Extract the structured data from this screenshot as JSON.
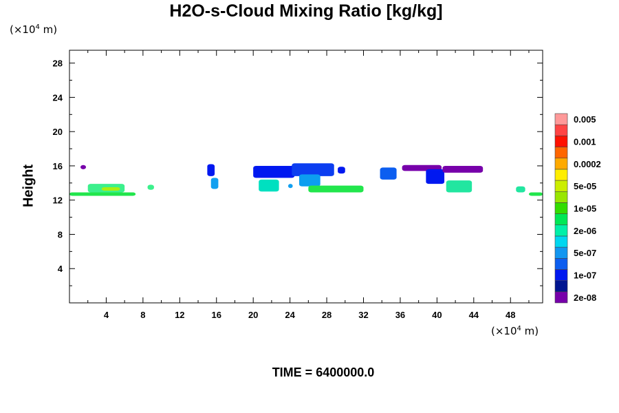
{
  "chart_data": {
    "type": "heatmap",
    "title": "H2O-s-Cloud Mixing Ratio [kg/kg]",
    "ylabel": "Height",
    "x_unit": {
      "prefix": "(×10",
      "exp": "4",
      "suffix": " m)"
    },
    "y_unit": {
      "prefix": "(×10",
      "exp": "4",
      "suffix": " m)"
    },
    "xlim": [
      0,
      51.5
    ],
    "ylim": [
      0,
      29.5
    ],
    "x_ticks": [
      4,
      8,
      12,
      16,
      20,
      24,
      28,
      32,
      36,
      40,
      44,
      48
    ],
    "y_ticks": [
      4,
      8,
      12,
      16,
      20,
      24,
      28
    ],
    "footer": "TIME = 6400000.0",
    "colorbar": {
      "colors": [
        "#7700aa",
        "#001590",
        "#0018f0",
        "#0c5ef0",
        "#1296f0",
        "#00d7f0",
        "#00f0a8",
        "#00e855",
        "#33dd00",
        "#99e600",
        "#ccee00",
        "#ffee00",
        "#ffaa00",
        "#ff6600",
        "#ff1100",
        "#ff4444",
        "#ff9999"
      ],
      "labels": [
        "2e-08",
        "1e-07",
        "5e-07",
        "2e-06",
        "1e-05",
        "5e-05",
        "0.0002",
        "0.001",
        "0.005"
      ]
    },
    "cloud_patches": [
      {
        "x": [
          0,
          7.2
        ],
        "y": [
          12.5,
          12.9
        ],
        "color": "#22e64c"
      },
      {
        "x": [
          2,
          6
        ],
        "y": [
          12.9,
          13.9
        ],
        "color": "#3cf08c"
      },
      {
        "x": [
          3.5,
          5.5
        ],
        "y": [
          13.1,
          13.5
        ],
        "color": "#aaee11"
      },
      {
        "x": [
          8.5,
          9.2
        ],
        "y": [
          13.2,
          13.8
        ],
        "color": "#3cf08c"
      },
      {
        "x": [
          1.2,
          1.8
        ],
        "y": [
          15.6,
          16.1
        ],
        "color": "#7700aa"
      },
      {
        "x": [
          15,
          15.8
        ],
        "y": [
          14.8,
          16.2
        ],
        "color": "#0018f0"
      },
      {
        "x": [
          15.4,
          16.2
        ],
        "y": [
          13.3,
          14.6
        ],
        "color": "#12a0f0"
      },
      {
        "x": [
          20,
          24.5
        ],
        "y": [
          14.6,
          16.0
        ],
        "color": "#0018f0"
      },
      {
        "x": [
          24.2,
          28.8
        ],
        "y": [
          14.8,
          16.3
        ],
        "color": "#0c3ef0"
      },
      {
        "x": [
          20.6,
          22.8
        ],
        "y": [
          13.0,
          14.4
        ],
        "color": "#00e0c0"
      },
      {
        "x": [
          25,
          27.3
        ],
        "y": [
          13.6,
          15.0
        ],
        "color": "#0c9ef0"
      },
      {
        "x": [
          26,
          32
        ],
        "y": [
          12.9,
          13.7
        ],
        "color": "#22e64c"
      },
      {
        "x": [
          29.2,
          30
        ],
        "y": [
          15.1,
          15.9
        ],
        "color": "#0018f0"
      },
      {
        "x": [
          33.8,
          35.6
        ],
        "y": [
          14.4,
          15.8
        ],
        "color": "#0c5ef0"
      },
      {
        "x": [
          36.2,
          40.5
        ],
        "y": [
          15.4,
          16.1
        ],
        "color": "#7700aa"
      },
      {
        "x": [
          38.8,
          40.8
        ],
        "y": [
          13.9,
          15.6
        ],
        "color": "#0018f0"
      },
      {
        "x": [
          40.6,
          45.0
        ],
        "y": [
          15.2,
          16.0
        ],
        "color": "#7700aa"
      },
      {
        "x": [
          41,
          43.8
        ],
        "y": [
          12.9,
          14.3
        ],
        "color": "#22e6a0"
      },
      {
        "x": [
          48.6,
          49.6
        ],
        "y": [
          12.9,
          13.6
        ],
        "color": "#22e6a0"
      },
      {
        "x": [
          50,
          51.5
        ],
        "y": [
          12.5,
          12.9
        ],
        "color": "#22e64c"
      },
      {
        "x": [
          23.8,
          24.3
        ],
        "y": [
          13.4,
          13.9
        ],
        "color": "#12a0f0"
      }
    ]
  }
}
